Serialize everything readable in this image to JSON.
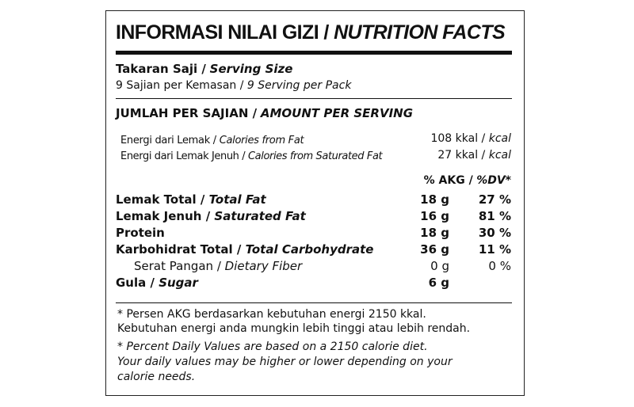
{
  "title": {
    "id": "INFORMASI NILAI GIZI /",
    "en": "NUTRITION FACTS"
  },
  "serving": {
    "label_id": "Takaran Saji /",
    "label_en": "Serving Size",
    "value_id": "9 Sajian per Kemasan /",
    "value_en": "9 Serving per Pack"
  },
  "amount_header": {
    "id": "JUMLAH PER SAJIAN /",
    "en": "AMOUNT PER SERVING"
  },
  "energy": [
    {
      "label_id": "Energi dari Lemak /",
      "label_en": "Calories from Fat",
      "value": "108 kkal /",
      "unit": "kcal"
    },
    {
      "label_id": "Energi dari Lemak Jenuh /",
      "label_en": "Calories from Saturated Fat",
      "value": "27 kkal /",
      "unit": "kcal"
    }
  ],
  "dv_header": {
    "id": "% AKG /",
    "en": "%DV*"
  },
  "nutrients": [
    {
      "label_id": "Lemak Total /",
      "label_en": "Total Fat",
      "amount": "18 g",
      "dv": "27 %"
    },
    {
      "label_id": "Lemak Jenuh /",
      "label_en": "Saturated Fat",
      "amount": "16 g",
      "dv": "81 %"
    },
    {
      "label_id": "Protein",
      "label_en": "",
      "amount": "18 g",
      "dv": "30 %"
    },
    {
      "label_id": "Karbohidrat Total /",
      "label_en": "Total Carbohydrate",
      "amount": "36 g",
      "dv": "11 %"
    },
    {
      "label_id": "Serat Pangan /",
      "label_en": "Dietary Fiber",
      "amount": "0 g",
      "dv": "0 %"
    },
    {
      "label_id": "Gula /",
      "label_en": "Sugar",
      "amount": "6 g",
      "dv": ""
    }
  ],
  "footnote": {
    "id_line1": "* Persen AKG berdasarkan kebutuhan energi 2150 kkal.",
    "id_line2": "Kebutuhan energi anda  mungkin lebih tinggi atau lebih rendah.",
    "en_line1": "* Percent Daily Values are based on a 2150 calorie diet.",
    "en_line2": "Your daily values may be higher or lower depending on your",
    "en_line3": "calorie needs."
  }
}
